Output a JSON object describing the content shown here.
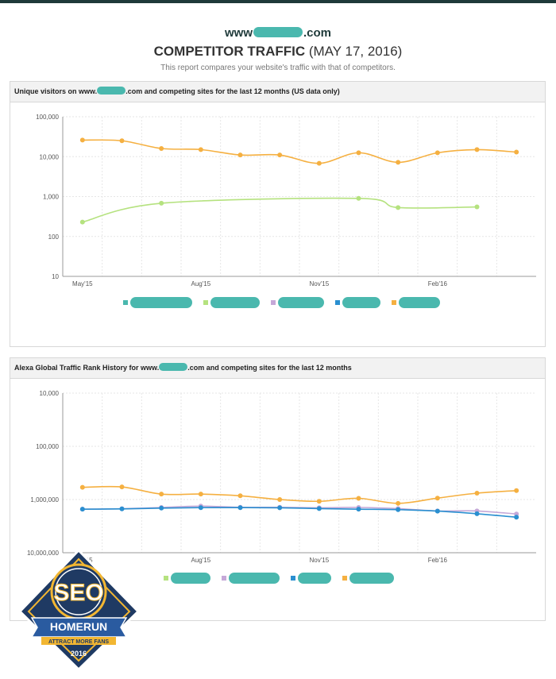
{
  "header": {
    "site_prefix": "www",
    "site_suffix": ".com",
    "title": "COMPETITOR TRAFFIC",
    "date": "(MAY 17, 2016)",
    "subtitle": "This report compares your website's traffic with that of competitors."
  },
  "badge": {
    "letters": "SEO",
    "banner": "HOMERUN",
    "tagline": "ATTRACT MORE FANS",
    "year": "2016"
  },
  "chart_data": [
    {
      "type": "line",
      "title_prefix": "Unique visitors on www.",
      "title_suffix": ".com and competing sites for the last 12 months (US data only)",
      "scale": "log",
      "ylim": [
        10,
        100000
      ],
      "yticks": [
        "10",
        "100",
        "1,000",
        "10,000",
        "100,000"
      ],
      "x": [
        "May'15",
        "Jun'15",
        "Jul'15",
        "Aug'15",
        "Sep'15",
        "Oct'15",
        "Nov'15",
        "Dec'15",
        "Jan'16",
        "Feb'16",
        "Mar'16",
        "Apr'16"
      ],
      "xtick_labels": [
        "May'15",
        "Aug'15",
        "Nov'15",
        "Feb'16"
      ],
      "grid": true,
      "legend_position": "bottom",
      "series": [
        {
          "color": "#f5b041",
          "values": [
            26000,
            25000,
            16000,
            15000,
            11000,
            11000,
            6800,
            12500,
            7200,
            12500,
            15000,
            13000
          ]
        },
        {
          "color": "#b5e27f",
          "values": [
            230,
            null,
            680,
            null,
            null,
            null,
            null,
            900,
            530,
            null,
            550,
            null
          ]
        }
      ],
      "legend_colors": [
        "#4ab8ae",
        "#b5e27f",
        "#c5a8d8",
        "#2a8fd0",
        "#f5b041"
      ]
    },
    {
      "type": "line",
      "title_prefix": "Alexa Global Traffic Rank History for www.",
      "title_suffix": ".com and competing sites for the last 12 months",
      "scale": "log-reversed",
      "ylim": [
        10000000,
        10000
      ],
      "yticks": [
        "10,000",
        "100,000",
        "1,000,000",
        "10,000,000"
      ],
      "x": [
        "May'15",
        "Jun'15",
        "Jul'15",
        "Aug'15",
        "Sep'15",
        "Oct'15",
        "Nov'15",
        "Dec'15",
        "Jan'16",
        "Feb'16",
        "Mar'16",
        "Apr'16"
      ],
      "xtick_labels": [
        "May'15",
        "Aug'15",
        "Nov'15",
        "Feb'16"
      ],
      "grid": true,
      "legend_position": "bottom",
      "series": [
        {
          "color": "#f5b041",
          "values": [
            590000,
            580000,
            790000,
            790000,
            850000,
            1000000,
            1080000,
            950000,
            1180000,
            940000,
            760000,
            680000
          ]
        },
        {
          "color": "#c5a8d8",
          "values": [
            1520000,
            1490000,
            1410000,
            1330000,
            1400000,
            1400000,
            1430000,
            1410000,
            1480000,
            1640000,
            1640000,
            1870000
          ]
        },
        {
          "color": "#2a8fd0",
          "values": [
            1520000,
            1500000,
            1450000,
            1420000,
            1420000,
            1430000,
            1480000,
            1520000,
            1550000,
            1650000,
            1850000,
            2150000
          ]
        }
      ],
      "legend_colors": [
        "#b5e27f",
        "#c5a8d8",
        "#2a8fd0",
        "#f5b041"
      ]
    }
  ]
}
